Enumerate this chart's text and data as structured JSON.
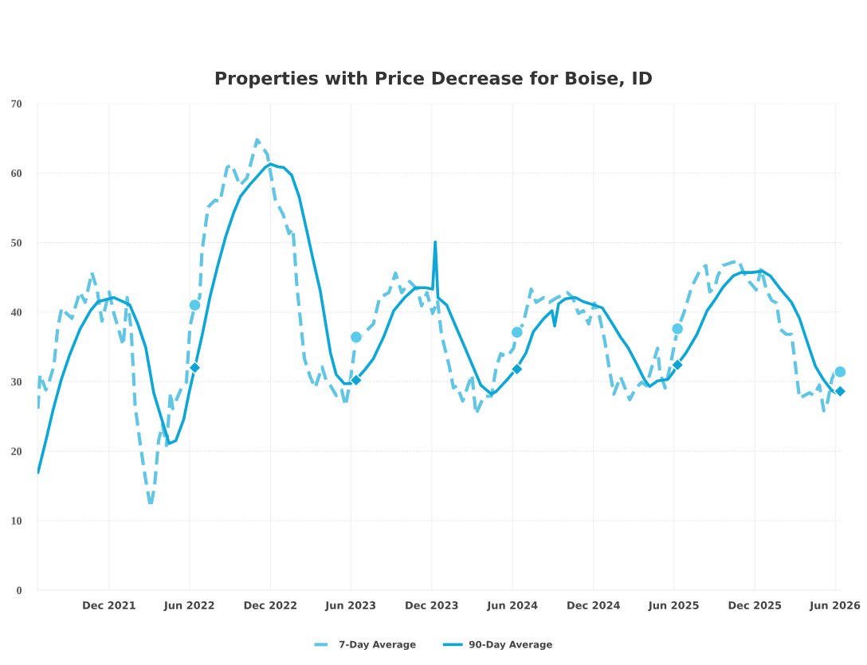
{
  "chart_data": {
    "type": "line",
    "title": "Properties with Price Decrease for Boise, ID",
    "xlim": [
      "2021-06-22",
      "2026-06-15"
    ],
    "ylim": [
      0,
      70
    ],
    "yticks": [
      0,
      10,
      20,
      30,
      40,
      50,
      60,
      70
    ],
    "xticks": [
      {
        "value": "2021-12-01",
        "label": "Dec 2021"
      },
      {
        "value": "2022-06-01",
        "label": "Jun 2022"
      },
      {
        "value": "2022-12-01",
        "label": "Dec 2022"
      },
      {
        "value": "2023-06-01",
        "label": "Jun 2023"
      },
      {
        "value": "2023-12-01",
        "label": "Dec 2023"
      },
      {
        "value": "2024-06-01",
        "label": "Jun 2024"
      },
      {
        "value": "2024-12-01",
        "label": "Dec 2024"
      },
      {
        "value": "2025-06-01",
        "label": "Jun 2025"
      },
      {
        "value": "2025-12-01",
        "label": "Dec 2025"
      },
      {
        "value": "2026-06-01",
        "label": "Jun 2026"
      }
    ],
    "grid": true,
    "legend": "bottom",
    "series": [
      {
        "name": "7-Day Average",
        "line_style": "dashed",
        "color": "#62c6e3",
        "x": [
          "2021-06-23",
          "2021-06-28",
          "2021-07-11",
          "2021-07-20",
          "2021-07-29",
          "2021-08-07",
          "2021-08-16",
          "2021-08-27",
          "2021-09-08",
          "2021-09-26",
          "2021-10-08",
          "2021-10-23",
          "2021-11-04",
          "2021-11-15",
          "2021-12-01",
          "2021-12-12",
          "2021-12-24",
          "2022-01-02",
          "2022-01-11",
          "2022-01-20",
          "2022-01-29",
          "2022-02-10",
          "2022-02-21",
          "2022-03-05",
          "2022-03-14",
          "2022-03-23",
          "2022-04-01",
          "2022-04-10",
          "2022-04-19",
          "2022-04-24",
          "2022-05-12",
          "2022-05-25",
          "2022-06-02",
          "2022-06-13",
          "2022-06-24",
          "2022-06-29",
          "2022-07-13",
          "2022-07-29",
          "2022-08-09",
          "2022-08-25",
          "2022-09-05",
          "2022-09-23",
          "2022-10-09",
          "2022-11-01",
          "2022-11-24",
          "2022-12-12",
          "2022-12-30",
          "2023-01-12",
          "2023-01-21",
          "2023-01-30",
          "2023-02-16",
          "2023-03-01",
          "2023-03-12",
          "2023-03-28",
          "2023-04-06",
          "2023-04-16",
          "2023-04-29",
          "2023-05-11",
          "2023-05-20",
          "2023-05-31",
          "2023-06-13",
          "2023-06-27",
          "2023-07-22",
          "2023-08-05",
          "2023-08-26",
          "2023-09-10",
          "2023-09-24",
          "2023-10-12",
          "2023-10-30",
          "2023-11-08",
          "2023-11-20",
          "2023-12-03",
          "2023-12-14",
          "2023-12-23",
          "2024-01-10",
          "2024-01-19",
          "2024-01-27",
          "2024-02-09",
          "2024-02-21",
          "2024-03-01",
          "2024-03-10",
          "2024-03-28",
          "2024-04-14",
          "2024-04-25",
          "2024-05-05",
          "2024-05-20",
          "2024-06-03",
          "2024-06-11",
          "2024-06-25",
          "2024-07-13",
          "2024-07-24",
          "2024-08-11",
          "2024-08-23",
          "2024-09-10",
          "2024-10-03",
          "2024-10-15",
          "2024-10-28",
          "2024-11-08",
          "2024-11-20",
          "2024-12-03",
          "2024-12-13",
          "2024-12-26",
          "2025-01-07",
          "2025-01-16",
          "2025-01-31",
          "2025-02-12",
          "2025-02-21",
          "2025-03-07",
          "2025-03-20",
          "2025-03-31",
          "2025-04-12",
          "2025-04-25",
          "2025-04-30",
          "2025-05-12",
          "2025-05-23",
          "2025-06-09",
          "2025-06-23",
          "2025-07-11",
          "2025-07-29",
          "2025-08-12",
          "2025-08-21",
          "2025-09-02",
          "2025-09-08",
          "2025-09-20",
          "2025-10-08",
          "2025-10-26",
          "2025-11-04",
          "2025-11-18",
          "2025-12-04",
          "2025-12-15",
          "2025-12-27",
          "2026-01-08",
          "2026-01-19",
          "2026-01-28",
          "2026-02-10",
          "2026-02-22",
          "2026-03-03",
          "2026-03-12",
          "2026-03-23",
          "2026-04-04",
          "2026-04-13",
          "2026-04-26",
          "2026-05-06",
          "2026-05-15",
          "2026-05-24",
          "2026-05-31"
        ],
        "values": [
          26.1,
          31.0,
          28.8,
          30.3,
          32.2,
          37.8,
          40.6,
          39.8,
          39.1,
          42.9,
          41.4,
          45.7,
          43.2,
          38.7,
          42.9,
          39.8,
          37.2,
          35.2,
          42.1,
          37.5,
          26.5,
          20.8,
          16.2,
          11.9,
          15.0,
          21.5,
          23.8,
          20.8,
          28.4,
          26.1,
          28.8,
          29.9,
          37.9,
          41.0,
          42.1,
          48.6,
          55.1,
          56.1,
          55.9,
          60.8,
          61.2,
          58.2,
          59.3,
          64.8,
          62.7,
          56.2,
          54.0,
          51.3,
          52.0,
          43.7,
          33.3,
          30.7,
          29.1,
          32.1,
          30.2,
          29.4,
          28.0,
          28.8,
          26.5,
          30.2,
          36.4,
          36.7,
          38.3,
          42.1,
          42.8,
          45.6,
          42.8,
          44.4,
          43.2,
          40.9,
          42.8,
          39.8,
          41.7,
          36.8,
          32.1,
          29.1,
          29.4,
          27.2,
          29.4,
          31.0,
          25.3,
          27.9,
          27.9,
          32.1,
          34.0,
          33.6,
          34.8,
          37.1,
          38.3,
          43.3,
          41.4,
          42.1,
          41.4,
          42.1,
          42.8,
          42.1,
          39.8,
          40.2,
          38.3,
          41.3,
          39.8,
          36.0,
          31.4,
          28.2,
          30.7,
          28.8,
          27.4,
          29.1,
          29.9,
          29.4,
          32.1,
          34.8,
          31.4,
          29.1,
          32.1,
          37.5,
          39.8,
          43.6,
          45.9,
          46.7,
          42.9,
          43.6,
          45.2,
          46.7,
          47.1,
          47.4,
          45.9,
          44.4,
          43.2,
          46.3,
          43.2,
          41.7,
          41.3,
          37.5,
          36.8,
          36.8,
          32.2,
          27.6,
          28.0,
          28.4,
          28.0,
          29.5,
          25.8,
          27.2,
          30.3,
          31.4
        ]
      },
      {
        "name": "90-Day Average",
        "line_style": "solid",
        "color": "#0ea6d4",
        "x": [
          "2021-06-23",
          "2021-07-11",
          "2021-07-28",
          "2021-08-15",
          "2021-09-02",
          "2021-09-26",
          "2021-10-20",
          "2021-11-06",
          "2021-11-18",
          "2021-12-12",
          "2022-01-05",
          "2022-01-17",
          "2022-02-04",
          "2022-02-22",
          "2022-03-12",
          "2022-03-30",
          "2022-04-16",
          "2022-05-01",
          "2022-05-19",
          "2022-05-31",
          "2022-06-13",
          "2022-06-30",
          "2022-07-17",
          "2022-08-04",
          "2022-08-22",
          "2022-09-09",
          "2022-09-24",
          "2022-10-15",
          "2022-11-01",
          "2022-11-19",
          "2022-12-01",
          "2022-12-19",
          "2022-12-31",
          "2023-01-18",
          "2023-02-04",
          "2023-02-22",
          "2023-03-06",
          "2023-03-24",
          "2023-04-16",
          "2023-04-29",
          "2023-05-17",
          "2023-05-31",
          "2023-06-13",
          "2023-07-04",
          "2023-07-22",
          "2023-08-14",
          "2023-09-06",
          "2023-10-01",
          "2023-10-25",
          "2023-11-17",
          "2023-12-03",
          "2023-12-09",
          "2023-12-15",
          "2024-01-04",
          "2024-01-22",
          "2024-02-14",
          "2024-03-03",
          "2024-03-21",
          "2024-04-14",
          "2024-04-25",
          "2024-05-20",
          "2024-06-09",
          "2024-07-01",
          "2024-07-18",
          "2024-08-11",
          "2024-08-29",
          "2024-09-04",
          "2024-09-13",
          "2024-09-28",
          "2024-10-21",
          "2024-11-08",
          "2024-12-03",
          "2024-12-21",
          "2025-01-13",
          "2025-01-31",
          "2025-02-17",
          "2025-03-08",
          "2025-03-26",
          "2025-04-07",
          "2025-04-25",
          "2025-05-18",
          "2025-05-31",
          "2025-06-10",
          "2025-06-28",
          "2025-07-23",
          "2025-08-15",
          "2025-09-02",
          "2025-09-20",
          "2025-10-13",
          "2025-10-31",
          "2025-11-25",
          "2025-12-18",
          "2026-01-05",
          "2026-01-28",
          "2026-02-22",
          "2026-03-12",
          "2026-03-30",
          "2026-04-17",
          "2026-05-05",
          "2026-05-23",
          "2026-06-02"
        ],
        "values": [
          16.9,
          21.5,
          26.1,
          30.3,
          33.7,
          37.5,
          40.2,
          41.5,
          41.7,
          42.1,
          41.4,
          41.0,
          38.3,
          34.9,
          28.4,
          24.6,
          21.1,
          21.5,
          24.6,
          28.4,
          32.0,
          36.8,
          42.1,
          46.7,
          50.9,
          54.3,
          56.6,
          58.3,
          59.5,
          60.8,
          61.3,
          60.9,
          60.8,
          59.7,
          56.6,
          51.5,
          48.0,
          43.0,
          34.1,
          31.0,
          29.7,
          29.7,
          30.3,
          31.8,
          33.3,
          36.4,
          40.2,
          42.1,
          43.5,
          43.5,
          43.3,
          50.1,
          42.1,
          41.0,
          38.3,
          34.9,
          32.2,
          29.5,
          28.2,
          28.6,
          30.3,
          31.8,
          34.1,
          37.2,
          39.1,
          40.2,
          38.0,
          41.2,
          41.9,
          42.1,
          41.5,
          41.0,
          40.6,
          38.3,
          36.4,
          34.9,
          32.6,
          30.3,
          29.3,
          30.1,
          30.3,
          31.4,
          32.6,
          34.1,
          36.8,
          40.2,
          41.8,
          43.6,
          45.2,
          45.7,
          45.7,
          45.9,
          45.2,
          43.3,
          41.4,
          39.1,
          35.6,
          32.2,
          30.3,
          28.8,
          28.4
        ]
      },
      {
        "type": "scatter",
        "marker": "circle",
        "color": "#5ccbe9",
        "x": [
          "2022-06-13",
          "2023-06-13",
          "2024-06-11",
          "2025-06-09",
          "2026-06-12"
        ],
        "values": [
          41.0,
          36.4,
          37.1,
          37.6,
          31.4
        ]
      },
      {
        "type": "scatter",
        "marker": "diamond",
        "color": "#0aa5d2",
        "x": [
          "2022-06-13",
          "2023-06-13",
          "2024-06-11",
          "2025-06-09",
          "2026-06-12"
        ],
        "values": [
          32.0,
          30.2,
          31.8,
          32.4,
          28.6
        ]
      }
    ]
  }
}
